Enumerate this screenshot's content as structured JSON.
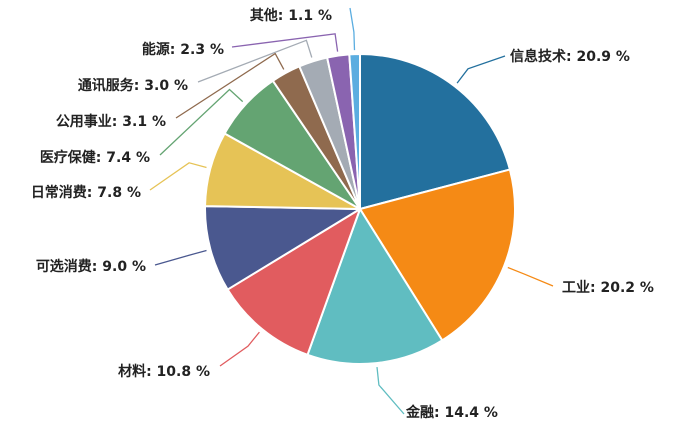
{
  "chart_data": {
    "type": "pie",
    "slices": [
      {
        "label": "信息技术",
        "value": 20.9,
        "display": "信息技术: 20.9 %",
        "color": "#23709E"
      },
      {
        "label": "工业",
        "value": 20.2,
        "display": "工业: 20.2 %",
        "color": "#F58A15"
      },
      {
        "label": "金融",
        "value": 14.4,
        "display": "金融: 14.4 %",
        "color": "#60BDC1"
      },
      {
        "label": "材料",
        "value": 10.8,
        "display": "材料: 10.8 %",
        "color": "#E15C5F"
      },
      {
        "label": "可选消费",
        "value": 9.0,
        "display": "可选消费: 9.0 %",
        "color": "#4A588F"
      },
      {
        "label": "日常消费",
        "value": 7.8,
        "display": "日常消费: 7.8 %",
        "color": "#E6C356"
      },
      {
        "label": "医疗保健",
        "value": 7.4,
        "display": "医疗保健: 7.4 %",
        "color": "#64A472"
      },
      {
        "label": "公用事业",
        "value": 3.1,
        "display": "公用事业: 3.1 %",
        "color": "#8F6A4E"
      },
      {
        "label": "通讯服务",
        "value": 3.0,
        "display": "通讯服务: 3.0 %",
        "color": "#A4ABB4"
      },
      {
        "label": "能源",
        "value": 2.3,
        "display": "能源: 2.3 %",
        "color": "#8A64B0"
      },
      {
        "label": "其他",
        "value": 1.1,
        "display": "其他: 1.1 %",
        "color": "#5BADE0"
      }
    ]
  }
}
